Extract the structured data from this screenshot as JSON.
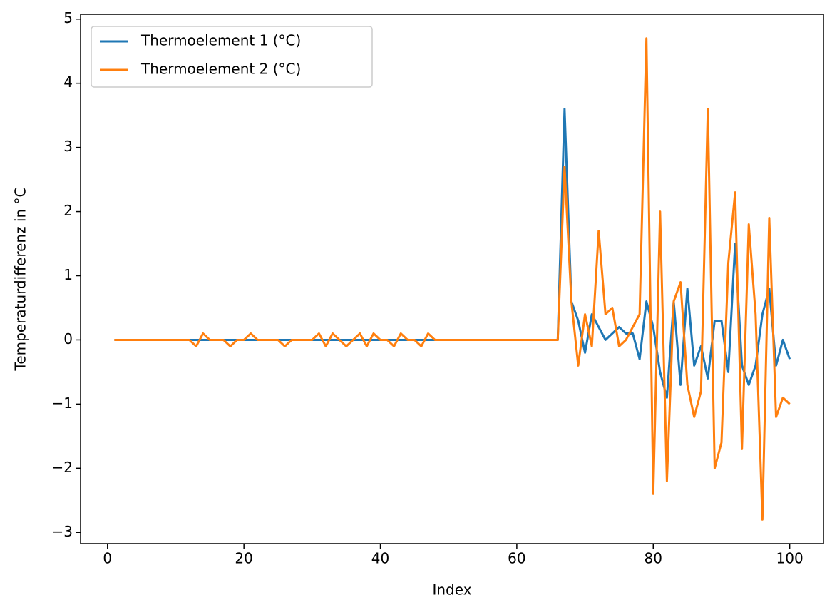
{
  "chart_data": {
    "type": "line",
    "x_label": "Index",
    "y_label": "Temperaturdifferenz in °C",
    "x": [
      1,
      2,
      3,
      4,
      5,
      6,
      7,
      8,
      9,
      10,
      11,
      12,
      13,
      14,
      15,
      16,
      17,
      18,
      19,
      20,
      21,
      22,
      23,
      24,
      25,
      26,
      27,
      28,
      29,
      30,
      31,
      32,
      33,
      34,
      35,
      36,
      37,
      38,
      39,
      40,
      41,
      42,
      43,
      44,
      45,
      46,
      47,
      48,
      49,
      50,
      51,
      52,
      53,
      54,
      55,
      56,
      57,
      58,
      59,
      60,
      61,
      62,
      63,
      64,
      65,
      66,
      67,
      68,
      69,
      70,
      71,
      72,
      73,
      74,
      75,
      76,
      77,
      78,
      79,
      80,
      81,
      82,
      83,
      84,
      85,
      86,
      87,
      88,
      89,
      90,
      91,
      92,
      93,
      94,
      95,
      96,
      97,
      98,
      99,
      100
    ],
    "series": [
      {
        "name": "Thermoelement 1 (°C)",
        "color": "#1f77b4",
        "values": [
          0,
          0,
          0,
          0,
          0,
          0,
          0,
          0,
          0,
          0,
          0,
          0,
          0,
          0,
          0,
          0,
          0,
          0,
          0,
          0,
          0,
          0,
          0,
          0,
          0,
          0,
          0,
          0,
          0,
          0,
          0,
          0,
          0,
          0,
          0,
          0,
          0,
          0,
          0,
          0,
          0,
          0,
          0,
          0,
          0,
          0,
          0,
          0,
          0,
          0,
          0,
          0,
          0,
          0,
          0,
          0,
          0,
          0,
          0,
          0,
          0,
          0,
          0,
          0,
          0,
          0,
          3.6,
          0.6,
          0.3,
          -0.2,
          0.4,
          0.2,
          0.0,
          0.1,
          0.2,
          0.1,
          0.1,
          -0.3,
          0.6,
          0.2,
          -0.5,
          -0.9,
          0.6,
          -0.7,
          0.8,
          -0.4,
          -0.1,
          -0.6,
          0.3,
          0.3,
          -0.5,
          1.5,
          -0.4,
          -0.7,
          -0.4,
          0.4,
          0.8,
          -0.4,
          0.0,
          -0.3
        ]
      },
      {
        "name": "Thermoelement 2 (°C)",
        "color": "#ff7f0e",
        "values": [
          0,
          0,
          0,
          0,
          0,
          0,
          0,
          0,
          0,
          0,
          0,
          0,
          -0.1,
          0.1,
          0,
          0,
          0,
          -0.1,
          0,
          0,
          0.1,
          0,
          0,
          0,
          0,
          -0.1,
          0,
          0,
          0,
          0,
          0.1,
          -0.1,
          0.1,
          0,
          -0.1,
          0,
          0.1,
          -0.1,
          0.1,
          0,
          0,
          -0.1,
          0.1,
          0,
          0,
          -0.1,
          0.1,
          0,
          0,
          0,
          0,
          0,
          0,
          0,
          0,
          0,
          0,
          0,
          0,
          0,
          0,
          0,
          0,
          0,
          0,
          0,
          2.7,
          0.6,
          -0.4,
          0.4,
          -0.1,
          1.7,
          0.4,
          0.5,
          -0.1,
          0.0,
          0.2,
          0.4,
          4.7,
          -2.4,
          2.0,
          -2.2,
          0.6,
          0.9,
          -0.7,
          -1.2,
          -0.8,
          3.6,
          -2.0,
          -1.6,
          1.2,
          2.3,
          -1.7,
          1.8,
          0.4,
          -2.8,
          1.9,
          -1.2,
          -0.9,
          -1.0
        ]
      }
    ],
    "xlim": [
      -3.95,
      104.95
    ],
    "xticks": [
      0,
      20,
      40,
      60,
      80,
      100
    ],
    "ylim": [
      -3.175,
      5.075
    ],
    "yticks": [
      {
        "value": -3,
        "label": "−3"
      },
      {
        "value": -2,
        "label": "−2"
      },
      {
        "value": -1,
        "label": "−1"
      },
      0,
      1,
      2,
      3,
      4,
      5
    ],
    "legend": "upper left",
    "grid": false
  }
}
